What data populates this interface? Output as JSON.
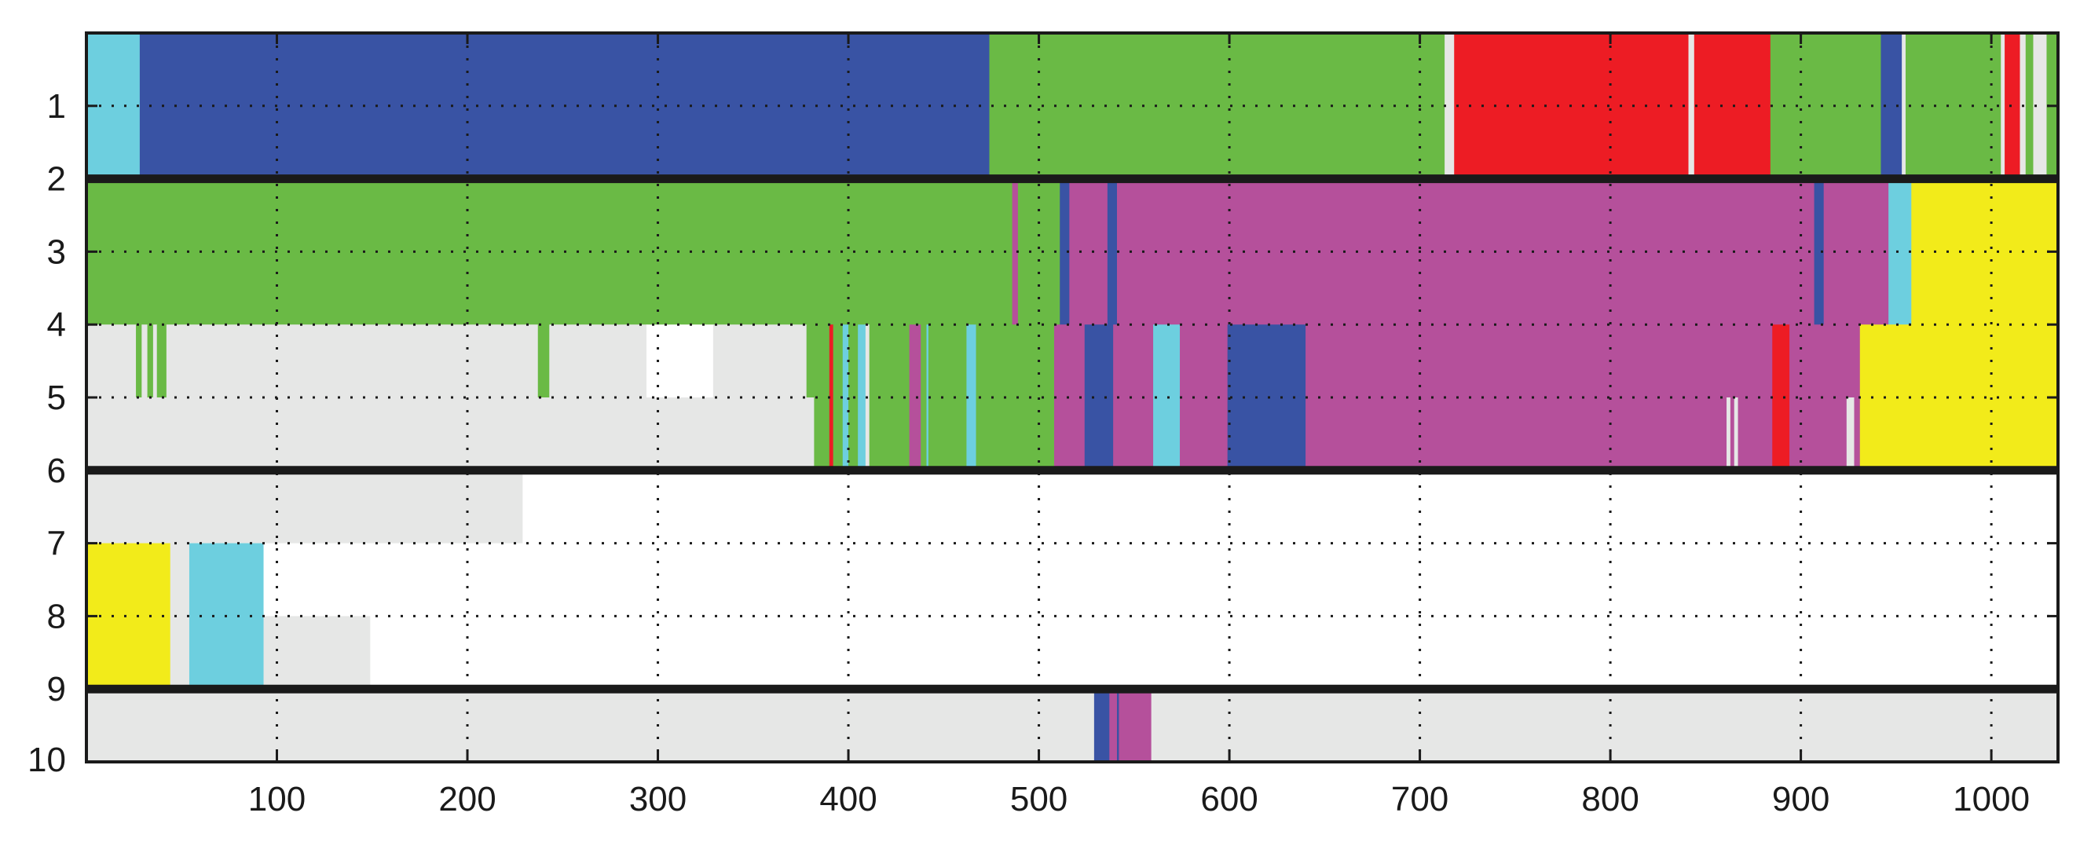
{
  "chart_data": {
    "type": "heatmap",
    "title": "",
    "xlabel": "",
    "ylabel": "",
    "xlim": [
      0,
      1035
    ],
    "ylim": [
      0,
      10
    ],
    "grid": true,
    "x_ticks": [
      100,
      200,
      300,
      400,
      500,
      600,
      700,
      800,
      900,
      1000
    ],
    "y_tick_labels": [
      {
        "label": "1",
        "y": 1
      },
      {
        "label": "2",
        "y": 2
      },
      {
        "label": "3",
        "y": 3
      },
      {
        "label": "4",
        "y": 4
      },
      {
        "label": "5",
        "y": 5
      },
      {
        "label": "6",
        "y": 6
      },
      {
        "label": "7",
        "y": 7
      },
      {
        "label": "8",
        "y": 8
      },
      {
        "label": "9",
        "y": 9
      },
      {
        "label": "10",
        "y": 10
      }
    ],
    "palette": {
      "cyan": "#6dcfdf",
      "blue": "#3953a4",
      "green": "#6aba45",
      "red": "#ed1c24",
      "magenta": "#b5509b",
      "yellow": "#f2eb1a",
      "gray": "#e6e7e6",
      "white": "#ffffff"
    },
    "group_separators_y": [
      2,
      6,
      9
    ],
    "rows": [
      {
        "y0": 0,
        "y1": 2,
        "segments": [
          {
            "x0": 0,
            "x1": 28,
            "c": "cyan"
          },
          {
            "x0": 28,
            "x1": 474,
            "c": "blue"
          },
          {
            "x0": 474,
            "x1": 713,
            "c": "green"
          },
          {
            "x0": 713,
            "x1": 718,
            "c": "gray"
          },
          {
            "x0": 718,
            "x1": 841,
            "c": "red"
          },
          {
            "x0": 841,
            "x1": 844,
            "c": "gray"
          },
          {
            "x0": 844,
            "x1": 884,
            "c": "red"
          },
          {
            "x0": 884,
            "x1": 942,
            "c": "green"
          },
          {
            "x0": 942,
            "x1": 953,
            "c": "blue"
          },
          {
            "x0": 953,
            "x1": 955,
            "c": "gray"
          },
          {
            "x0": 955,
            "x1": 1005,
            "c": "green"
          },
          {
            "x0": 1005,
            "x1": 1007,
            "c": "gray"
          },
          {
            "x0": 1007,
            "x1": 1015,
            "c": "red"
          },
          {
            "x0": 1015,
            "x1": 1018,
            "c": "gray"
          },
          {
            "x0": 1018,
            "x1": 1022,
            "c": "green"
          },
          {
            "x0": 1022,
            "x1": 1029,
            "c": "gray"
          },
          {
            "x0": 1029,
            "x1": 1035,
            "c": "green"
          }
        ]
      },
      {
        "y0": 2,
        "y1": 4,
        "segments": [
          {
            "x0": 0,
            "x1": 486,
            "c": "green"
          },
          {
            "x0": 486,
            "x1": 489,
            "c": "magenta"
          },
          {
            "x0": 489,
            "x1": 511,
            "c": "green"
          },
          {
            "x0": 511,
            "x1": 516,
            "c": "blue"
          },
          {
            "x0": 516,
            "x1": 536,
            "c": "magenta"
          },
          {
            "x0": 536,
            "x1": 541,
            "c": "blue"
          },
          {
            "x0": 541,
            "x1": 907,
            "c": "magenta"
          },
          {
            "x0": 907,
            "x1": 912,
            "c": "blue"
          },
          {
            "x0": 912,
            "x1": 946,
            "c": "magenta"
          },
          {
            "x0": 946,
            "x1": 958,
            "c": "cyan"
          },
          {
            "x0": 958,
            "x1": 1035,
            "c": "yellow"
          }
        ]
      },
      {
        "y0": 4,
        "y1": 5,
        "segments": [
          {
            "x0": 0,
            "x1": 26,
            "c": "gray"
          },
          {
            "x0": 26,
            "x1": 29,
            "c": "green"
          },
          {
            "x0": 29,
            "x1": 32,
            "c": "gray"
          },
          {
            "x0": 32,
            "x1": 35,
            "c": "green"
          },
          {
            "x0": 35,
            "x1": 37,
            "c": "gray"
          },
          {
            "x0": 37,
            "x1": 42,
            "c": "green"
          },
          {
            "x0": 42,
            "x1": 237,
            "c": "gray"
          },
          {
            "x0": 237,
            "x1": 243,
            "c": "green"
          },
          {
            "x0": 243,
            "x1": 294,
            "c": "gray"
          },
          {
            "x0": 294,
            "x1": 329,
            "c": "white"
          },
          {
            "x0": 329,
            "x1": 378,
            "c": "gray"
          },
          {
            "x0": 378,
            "x1": 390,
            "c": "green"
          },
          {
            "x0": 390,
            "x1": 392,
            "c": "red"
          },
          {
            "x0": 392,
            "x1": 397,
            "c": "green"
          },
          {
            "x0": 397,
            "x1": 400,
            "c": "cyan"
          },
          {
            "x0": 400,
            "x1": 405,
            "c": "green"
          },
          {
            "x0": 405,
            "x1": 409,
            "c": "cyan"
          },
          {
            "x0": 409,
            "x1": 411,
            "c": "gray"
          },
          {
            "x0": 411,
            "x1": 432,
            "c": "green"
          },
          {
            "x0": 432,
            "x1": 438,
            "c": "magenta"
          },
          {
            "x0": 438,
            "x1": 441,
            "c": "green"
          },
          {
            "x0": 441,
            "x1": 442,
            "c": "cyan"
          },
          {
            "x0": 442,
            "x1": 462,
            "c": "green"
          },
          {
            "x0": 462,
            "x1": 467,
            "c": "cyan"
          },
          {
            "x0": 467,
            "x1": 508,
            "c": "green"
          },
          {
            "x0": 508,
            "x1": 524,
            "c": "magenta"
          },
          {
            "x0": 524,
            "x1": 539,
            "c": "blue"
          },
          {
            "x0": 539,
            "x1": 560,
            "c": "magenta"
          },
          {
            "x0": 560,
            "x1": 574,
            "c": "cyan"
          },
          {
            "x0": 574,
            "x1": 599,
            "c": "magenta"
          },
          {
            "x0": 599,
            "x1": 640,
            "c": "blue"
          },
          {
            "x0": 640,
            "x1": 885,
            "c": "magenta"
          },
          {
            "x0": 885,
            "x1": 894,
            "c": "red"
          },
          {
            "x0": 894,
            "x1": 931,
            "c": "magenta"
          },
          {
            "x0": 931,
            "x1": 1035,
            "c": "yellow"
          }
        ]
      },
      {
        "y0": 5,
        "y1": 6,
        "segments": [
          {
            "x0": 0,
            "x1": 382,
            "c": "gray"
          },
          {
            "x0": 382,
            "x1": 390,
            "c": "green"
          },
          {
            "x0": 390,
            "x1": 392,
            "c": "red"
          },
          {
            "x0": 392,
            "x1": 397,
            "c": "green"
          },
          {
            "x0": 397,
            "x1": 400,
            "c": "cyan"
          },
          {
            "x0": 400,
            "x1": 405,
            "c": "green"
          },
          {
            "x0": 405,
            "x1": 409,
            "c": "cyan"
          },
          {
            "x0": 409,
            "x1": 411,
            "c": "gray"
          },
          {
            "x0": 411,
            "x1": 432,
            "c": "green"
          },
          {
            "x0": 432,
            "x1": 438,
            "c": "magenta"
          },
          {
            "x0": 438,
            "x1": 441,
            "c": "green"
          },
          {
            "x0": 441,
            "x1": 442,
            "c": "cyan"
          },
          {
            "x0": 442,
            "x1": 462,
            "c": "green"
          },
          {
            "x0": 462,
            "x1": 467,
            "c": "cyan"
          },
          {
            "x0": 467,
            "x1": 508,
            "c": "green"
          },
          {
            "x0": 508,
            "x1": 524,
            "c": "magenta"
          },
          {
            "x0": 524,
            "x1": 539,
            "c": "blue"
          },
          {
            "x0": 539,
            "x1": 560,
            "c": "magenta"
          },
          {
            "x0": 560,
            "x1": 574,
            "c": "cyan"
          },
          {
            "x0": 574,
            "x1": 599,
            "c": "magenta"
          },
          {
            "x0": 599,
            "x1": 640,
            "c": "blue"
          },
          {
            "x0": 640,
            "x1": 861,
            "c": "magenta"
          },
          {
            "x0": 861,
            "x1": 863,
            "c": "gray"
          },
          {
            "x0": 863,
            "x1": 865,
            "c": "magenta"
          },
          {
            "x0": 865,
            "x1": 867,
            "c": "gray"
          },
          {
            "x0": 867,
            "x1": 885,
            "c": "magenta"
          },
          {
            "x0": 885,
            "x1": 894,
            "c": "red"
          },
          {
            "x0": 894,
            "x1": 924,
            "c": "magenta"
          },
          {
            "x0": 924,
            "x1": 928,
            "c": "gray"
          },
          {
            "x0": 928,
            "x1": 931,
            "c": "magenta"
          },
          {
            "x0": 931,
            "x1": 1035,
            "c": "yellow"
          }
        ]
      },
      {
        "y0": 6,
        "y1": 7,
        "segments": [
          {
            "x0": 0,
            "x1": 229,
            "c": "gray"
          },
          {
            "x0": 229,
            "x1": 1035,
            "c": "white"
          }
        ]
      },
      {
        "y0": 7,
        "y1": 8,
        "segments": [
          {
            "x0": 0,
            "x1": 44,
            "c": "yellow"
          },
          {
            "x0": 44,
            "x1": 54,
            "c": "gray"
          },
          {
            "x0": 54,
            "x1": 93,
            "c": "cyan"
          },
          {
            "x0": 93,
            "x1": 1035,
            "c": "white"
          }
        ]
      },
      {
        "y0": 8,
        "y1": 9,
        "segments": [
          {
            "x0": 0,
            "x1": 44,
            "c": "yellow"
          },
          {
            "x0": 44,
            "x1": 54,
            "c": "gray"
          },
          {
            "x0": 54,
            "x1": 93,
            "c": "cyan"
          },
          {
            "x0": 93,
            "x1": 149,
            "c": "gray"
          },
          {
            "x0": 149,
            "x1": 1035,
            "c": "white"
          }
        ]
      },
      {
        "y0": 9,
        "y1": 10,
        "segments": [
          {
            "x0": 0,
            "x1": 529,
            "c": "gray"
          },
          {
            "x0": 529,
            "x1": 537,
            "c": "blue"
          },
          {
            "x0": 537,
            "x1": 541,
            "c": "magenta"
          },
          {
            "x0": 541,
            "x1": 542,
            "c": "blue"
          },
          {
            "x0": 542,
            "x1": 559,
            "c": "magenta"
          },
          {
            "x0": 559,
            "x1": 1035,
            "c": "gray"
          }
        ]
      }
    ]
  }
}
